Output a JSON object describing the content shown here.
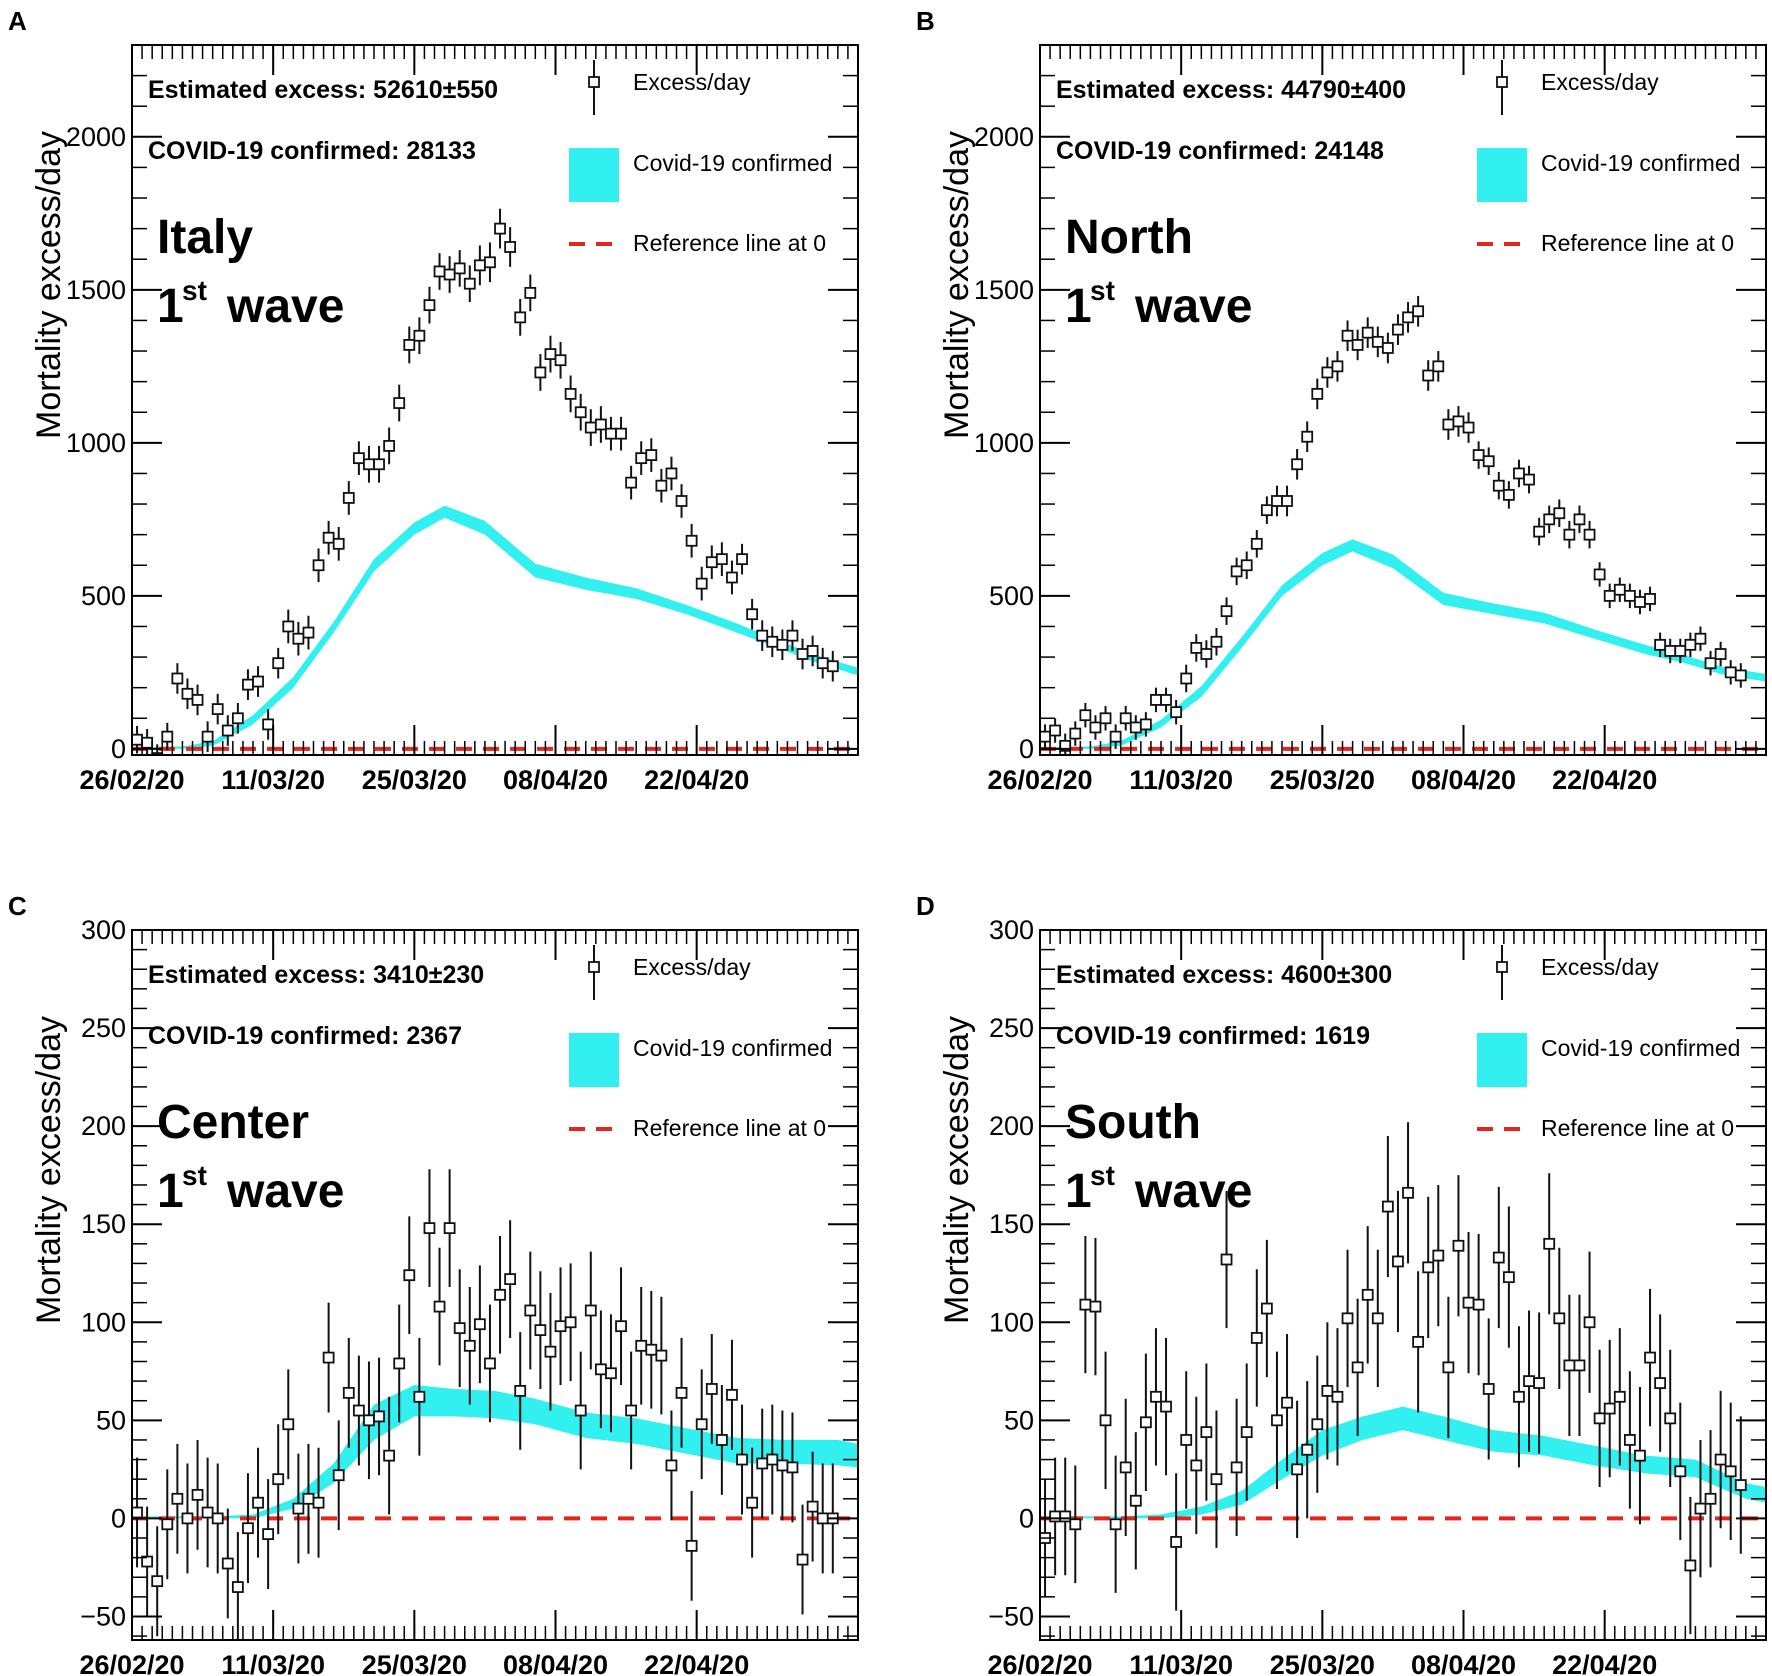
{
  "colors": {
    "band": "#33f0f0",
    "ref": "#e3261d",
    "marker": "#111111",
    "axis": "#000000"
  },
  "chart_data": [
    {
      "panel_letter": "A",
      "type": "scatter",
      "region_name": "Italy",
      "wave_number": "1",
      "wave_suffix": "st",
      "wave_word": "wave",
      "ylabel": "Mortality excess/day",
      "ylim": [
        -20,
        2300
      ],
      "yticks": [
        0,
        500,
        1000,
        1500,
        2000
      ],
      "xrange": [
        0,
        72
      ],
      "xtick_days": [
        0,
        14,
        28,
        42,
        56
      ],
      "xtick_labels": [
        "26/02/20",
        "11/03/20",
        "25/03/20",
        "08/04/20",
        "22/04/20"
      ],
      "estimated_excess_text": "Estimated excess: 52610±550",
      "confirmed_text": "COVID-19 confirmed: 28133",
      "legend": {
        "points": "Excess/day",
        "band": "Covid-19 confirmed",
        "ref": "Reference line at 0"
      },
      "excess_per_day": [
        30,
        20,
        -30,
        40,
        230,
        180,
        160,
        40,
        130,
        60,
        100,
        210,
        220,
        80,
        280,
        400,
        360,
        380,
        600,
        690,
        670,
        820,
        950,
        930,
        930,
        990,
        1130,
        1320,
        1350,
        1450,
        1560,
        1550,
        1570,
        1520,
        1580,
        1590,
        1700,
        1640,
        1410,
        1490,
        1230,
        1290,
        1270,
        1160,
        1100,
        1050,
        1060,
        1030,
        1030,
        870,
        950,
        960,
        860,
        900,
        810,
        680,
        540,
        610,
        620,
        560,
        620,
        440,
        370,
        350,
        340,
        370,
        310,
        320,
        280,
        270
      ],
      "error": [
        45,
        45,
        45,
        45,
        50,
        50,
        50,
        50,
        50,
        50,
        50,
        50,
        50,
        50,
        50,
        55,
        55,
        55,
        55,
        55,
        55,
        55,
        55,
        60,
        60,
        60,
        60,
        60,
        60,
        60,
        60,
        60,
        60,
        60,
        65,
        65,
        65,
        65,
        60,
        60,
        60,
        60,
        60,
        60,
        60,
        60,
        60,
        55,
        55,
        55,
        55,
        55,
        55,
        55,
        55,
        55,
        55,
        55,
        55,
        55,
        50,
        50,
        50,
        50,
        50,
        50,
        50,
        50,
        50,
        50
      ],
      "band_day": [
        0,
        5,
        8,
        12,
        16,
        20,
        24,
        28,
        31,
        35,
        40,
        45,
        50,
        55,
        60,
        64,
        68,
        72
      ],
      "band_low": [
        0,
        0,
        10,
        80,
        200,
        380,
        580,
        700,
        755,
        700,
        560,
        520,
        490,
        440,
        380,
        330,
        280,
        240
      ],
      "band_high": [
        5,
        8,
        25,
        110,
        235,
        415,
        620,
        740,
        795,
        745,
        605,
        560,
        525,
        470,
        410,
        355,
        305,
        265
      ]
    },
    {
      "panel_letter": "B",
      "type": "scatter",
      "region_name": "North",
      "wave_number": "1",
      "wave_suffix": "st",
      "wave_word": "wave",
      "ylabel": "Mortality excess/day",
      "ylim": [
        -20,
        2300
      ],
      "yticks": [
        0,
        500,
        1000,
        1500,
        2000
      ],
      "xrange": [
        0,
        72
      ],
      "xtick_days": [
        0,
        14,
        28,
        42,
        56
      ],
      "xtick_labels": [
        "26/02/20",
        "11/03/20",
        "25/03/20",
        "08/04/20",
        "22/04/20"
      ],
      "estimated_excess_text": "Estimated excess: 44790±400",
      "confirmed_text": "COVID-19 confirmed: 24148",
      "legend": {
        "points": "Excess/day",
        "band": "Covid-19 confirmed",
        "ref": "Reference line at 0"
      },
      "excess_per_day": [
        40,
        60,
        10,
        50,
        110,
        70,
        100,
        40,
        100,
        70,
        80,
        160,
        160,
        120,
        230,
        330,
        310,
        350,
        450,
        580,
        600,
        670,
        780,
        810,
        810,
        930,
        1020,
        1160,
        1230,
        1250,
        1350,
        1320,
        1360,
        1330,
        1310,
        1370,
        1410,
        1430,
        1220,
        1250,
        1060,
        1070,
        1050,
        960,
        940,
        860,
        830,
        900,
        880,
        710,
        750,
        770,
        700,
        750,
        700,
        570,
        500,
        520,
        500,
        480,
        490,
        340,
        320,
        320,
        340,
        360,
        280,
        310,
        250,
        240
      ],
      "error": [
        40,
        40,
        40,
        40,
        40,
        40,
        40,
        40,
        40,
        40,
        40,
        40,
        40,
        40,
        45,
        45,
        45,
        45,
        45,
        45,
        45,
        45,
        45,
        50,
        50,
        50,
        50,
        50,
        50,
        50,
        50,
        50,
        50,
        50,
        50,
        50,
        50,
        50,
        50,
        50,
        50,
        50,
        50,
        45,
        45,
        45,
        45,
        45,
        45,
        45,
        45,
        45,
        45,
        45,
        45,
        40,
        40,
        40,
        40,
        40,
        40,
        40,
        40,
        40,
        40,
        40,
        40,
        40,
        40,
        40
      ],
      "band_day": [
        0,
        5,
        8,
        12,
        16,
        20,
        24,
        28,
        31,
        35,
        40,
        45,
        50,
        55,
        60,
        64,
        68,
        72
      ],
      "band_low": [
        0,
        0,
        10,
        70,
        170,
        330,
        500,
        600,
        645,
        590,
        470,
        440,
        410,
        360,
        310,
        280,
        240,
        220
      ],
      "band_high": [
        5,
        8,
        25,
        95,
        205,
        365,
        535,
        640,
        685,
        635,
        510,
        475,
        445,
        390,
        340,
        305,
        265,
        245
      ]
    },
    {
      "panel_letter": "C",
      "type": "scatter",
      "region_name": "Center",
      "wave_number": "1",
      "wave_suffix": "st",
      "wave_word": "wave",
      "ylabel": "Mortality excess/day",
      "ylim": [
        -62,
        300
      ],
      "yticks": [
        -50,
        0,
        50,
        100,
        150,
        200,
        250,
        300
      ],
      "xrange": [
        0,
        72
      ],
      "xtick_days": [
        0,
        14,
        28,
        42,
        56
      ],
      "xtick_labels": [
        "26/02/20",
        "11/03/20",
        "25/03/20",
        "08/04/20",
        "22/04/20"
      ],
      "estimated_excess_text": "Estimated excess: 3410±230",
      "confirmed_text": "COVID-19 confirmed: 2367",
      "legend": {
        "points": "Excess/day",
        "band": "Covid-19 confirmed",
        "ref": "Reference line at 0"
      },
      "excess_per_day": [
        3,
        -22,
        -32,
        -3,
        10,
        0,
        12,
        3,
        0,
        -23,
        -35,
        -5,
        8,
        -8,
        20,
        48,
        5,
        10,
        8,
        82,
        22,
        64,
        55,
        50,
        52,
        32,
        79,
        124,
        62,
        148,
        108,
        148,
        97,
        88,
        99,
        79,
        114,
        122,
        65,
        106,
        96,
        85,
        98,
        100,
        55,
        106,
        76,
        74,
        98,
        55,
        88,
        86,
        83,
        27,
        64,
        -14,
        48,
        66,
        40,
        63,
        30,
        8,
        28,
        30,
        27,
        26,
        -21,
        6,
        0,
        0
      ],
      "error": [
        28,
        28,
        28,
        28,
        28,
        28,
        28,
        28,
        28,
        28,
        28,
        28,
        28,
        28,
        28,
        28,
        28,
        28,
        28,
        28,
        28,
        28,
        28,
        30,
        30,
        30,
        30,
        30,
        30,
        30,
        30,
        30,
        30,
        30,
        30,
        30,
        30,
        30,
        30,
        30,
        30,
        30,
        30,
        30,
        30,
        30,
        30,
        30,
        30,
        30,
        30,
        30,
        30,
        28,
        28,
        28,
        28,
        28,
        28,
        28,
        28,
        28,
        28,
        28,
        28,
        28,
        28,
        28,
        28,
        28
      ],
      "band_day": [
        0,
        8,
        12,
        16,
        20,
        24,
        28,
        32,
        36,
        40,
        45,
        50,
        55,
        60,
        65,
        70,
        72
      ],
      "band_low": [
        0,
        0,
        0,
        5,
        18,
        40,
        52,
        52,
        51,
        48,
        41,
        38,
        33,
        28,
        28,
        27,
        26
      ],
      "band_high": [
        1,
        1,
        2,
        10,
        28,
        58,
        68,
        66,
        65,
        61,
        54,
        51,
        46,
        41,
        40,
        40,
        38
      ]
    },
    {
      "panel_letter": "D",
      "type": "scatter",
      "region_name": "South",
      "wave_number": "1",
      "wave_suffix": "st",
      "wave_word": "wave",
      "ylabel": "Mortality excess/day",
      "ylim": [
        -62,
        300
      ],
      "yticks": [
        -50,
        0,
        50,
        100,
        150,
        200,
        250,
        300
      ],
      "xrange": [
        0,
        72
      ],
      "xtick_days": [
        0,
        14,
        28,
        42,
        56
      ],
      "xtick_labels": [
        "26/02/20",
        "11/03/20",
        "25/03/20",
        "08/04/20",
        "22/04/20"
      ],
      "estimated_excess_text": "Estimated excess: 4600±300",
      "confirmed_text": "COVID-19 confirmed: 1619",
      "legend": {
        "points": "Excess/day",
        "band": "Covid-19 confirmed",
        "ref": "Reference line at 0"
      },
      "excess_per_day": [
        -10,
        1,
        1,
        -3,
        109,
        108,
        50,
        -3,
        26,
        9,
        49,
        62,
        57,
        -12,
        40,
        27,
        44,
        20,
        132,
        26,
        44,
        92,
        107,
        50,
        59,
        25,
        35,
        48,
        65,
        62,
        102,
        77,
        114,
        102,
        159,
        131,
        166,
        90,
        128,
        134,
        77,
        139,
        110,
        109,
        66,
        133,
        123,
        62,
        70,
        69,
        140,
        102,
        78,
        78,
        100,
        51,
        56,
        62,
        40,
        32,
        82,
        69,
        51,
        24,
        -24,
        5,
        10,
        30,
        24,
        17
      ],
      "error": [
        30,
        30,
        30,
        30,
        35,
        35,
        35,
        35,
        35,
        35,
        35,
        35,
        35,
        35,
        35,
        35,
        35,
        35,
        35,
        35,
        35,
        35,
        35,
        35,
        35,
        35,
        35,
        35,
        35,
        35,
        35,
        35,
        35,
        35,
        36,
        36,
        36,
        36,
        36,
        36,
        36,
        36,
        36,
        36,
        36,
        36,
        36,
        36,
        36,
        36,
        36,
        36,
        36,
        36,
        36,
        35,
        35,
        35,
        35,
        35,
        35,
        35,
        35,
        35,
        35,
        35,
        35,
        35,
        35,
        35
      ],
      "band_day": [
        0,
        8,
        12,
        16,
        20,
        24,
        28,
        32,
        36,
        40,
        45,
        50,
        55,
        60,
        65,
        70,
        72
      ],
      "band_low": [
        0,
        0,
        0,
        2,
        7,
        20,
        32,
        40,
        45,
        40,
        34,
        32,
        27,
        23,
        21,
        10,
        8
      ],
      "band_high": [
        1,
        1,
        2,
        6,
        14,
        30,
        45,
        52,
        57,
        52,
        45,
        42,
        37,
        32,
        30,
        18,
        16
      ]
    }
  ]
}
